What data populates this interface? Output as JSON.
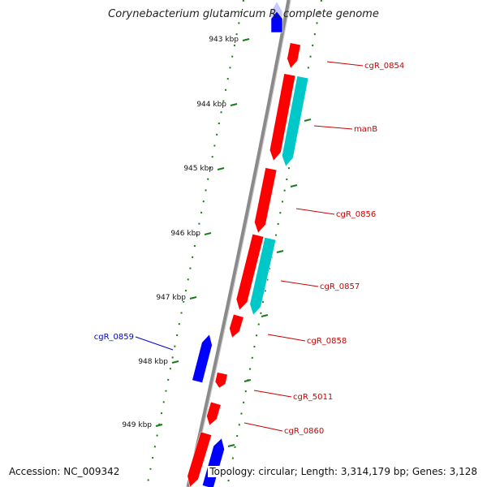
{
  "header": {
    "title": "Corynebacterium glutamicum R, complete genome"
  },
  "footer": {
    "accession": "Accession: NC_009342",
    "stats": "Topology: circular; Length: 3,314,179 bp; Genes: 3,128"
  },
  "colors": {
    "backbone": "#8a8a8a",
    "tick": "#1a7a1a",
    "forward_gene": "#ff0000",
    "reverse_gene": "#0000ff",
    "forward_cds_extra": "#00c8c8",
    "label_forward": "#cc0000",
    "label_reverse": "#0000cc"
  },
  "scale": {
    "unit": "kbp",
    "ticks": [
      "943 kbp",
      "944 kbp",
      "945 kbp",
      "946 kbp",
      "947 kbp",
      "948 kbp",
      "949 kbp"
    ]
  },
  "genes": [
    {
      "id": "cgR_0854",
      "label": "cgR_0854",
      "strand": "forward"
    },
    {
      "id": "manB",
      "label": "manB",
      "strand": "forward"
    },
    {
      "id": "cgR_0856",
      "label": "cgR_0856",
      "strand": "forward"
    },
    {
      "id": "cgR_0857",
      "label": "cgR_0857",
      "strand": "forward"
    },
    {
      "id": "cgR_0858",
      "label": "cgR_0858",
      "strand": "forward"
    },
    {
      "id": "cgR_0859",
      "label": "cgR_0859",
      "strand": "reverse"
    },
    {
      "id": "cgR_5011",
      "label": "cgR_5011",
      "strand": "forward"
    },
    {
      "id": "cgR_0860",
      "label": "cgR_0860",
      "strand": "forward"
    }
  ]
}
